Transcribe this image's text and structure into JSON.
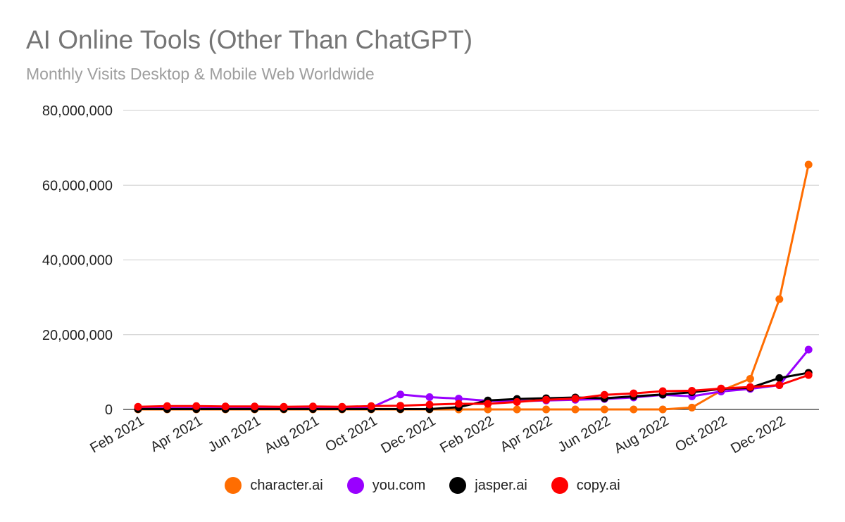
{
  "chart_data": {
    "type": "line",
    "title": "AI Online Tools (Other Than ChatGPT)",
    "subtitle": "Monthly Visits Desktop & Mobile Web Worldwide",
    "xlabel": "",
    "ylabel": "",
    "x": [
      "Feb 2021",
      "Mar 2021",
      "Apr 2021",
      "May 2021",
      "Jun 2021",
      "Jul 2021",
      "Aug 2021",
      "Sep 2021",
      "Oct 2021",
      "Nov 2021",
      "Dec 2021",
      "Jan 2022",
      "Feb 2022",
      "Mar 2022",
      "Apr 2022",
      "May 2022",
      "Jun 2022",
      "Jul 2022",
      "Aug 2022",
      "Sep 2022",
      "Oct 2022",
      "Nov 2022",
      "Dec 2022",
      "Jan 2023"
    ],
    "x_tick_labels": [
      "Feb 2021",
      "Apr 2021",
      "Jun 2021",
      "Aug 2021",
      "Oct 2021",
      "Dec 2021",
      "Feb 2022",
      "Apr 2022",
      "Jun 2022",
      "Aug 2022",
      "Oct 2022",
      "Dec 2022"
    ],
    "y_tick_labels": [
      "0",
      "20,000,000",
      "40,000,000",
      "60,000,000",
      "80,000,000"
    ],
    "ylim": [
      0,
      80000000
    ],
    "grid": true,
    "legend_position": "bottom",
    "series": [
      {
        "name": "character.ai",
        "color": "#ff6d01",
        "values": [
          0,
          0,
          0,
          0,
          0,
          0,
          0,
          0,
          0,
          0,
          0,
          0,
          0,
          0,
          0,
          0,
          0,
          0,
          0,
          500000,
          5000000,
          8200000,
          29500000,
          65500000
        ]
      },
      {
        "name": "you.com",
        "color": "#9900ff",
        "values": [
          300000,
          300000,
          300000,
          300000,
          300000,
          300000,
          300000,
          300000,
          500000,
          4000000,
          3300000,
          2900000,
          2300000,
          2200000,
          2400000,
          2600000,
          2800000,
          3200000,
          3900000,
          3500000,
          4800000,
          5500000,
          6500000,
          16000000
        ]
      },
      {
        "name": "jasper.ai",
        "color": "#000000",
        "values": [
          100000,
          100000,
          100000,
          100000,
          100000,
          100000,
          100000,
          100000,
          100000,
          100000,
          100000,
          600000,
          2400000,
          2800000,
          3000000,
          3200000,
          3000000,
          3500000,
          4000000,
          4600000,
          5500000,
          5800000,
          8400000,
          9800000
        ]
      },
      {
        "name": "copy.ai",
        "color": "#ff0000",
        "values": [
          700000,
          900000,
          900000,
          800000,
          800000,
          700000,
          800000,
          700000,
          900000,
          1000000,
          1300000,
          1500000,
          1500000,
          2000000,
          2600000,
          2900000,
          3900000,
          4300000,
          4900000,
          5000000,
          5600000,
          6000000,
          6500000,
          9200000
        ]
      }
    ]
  }
}
